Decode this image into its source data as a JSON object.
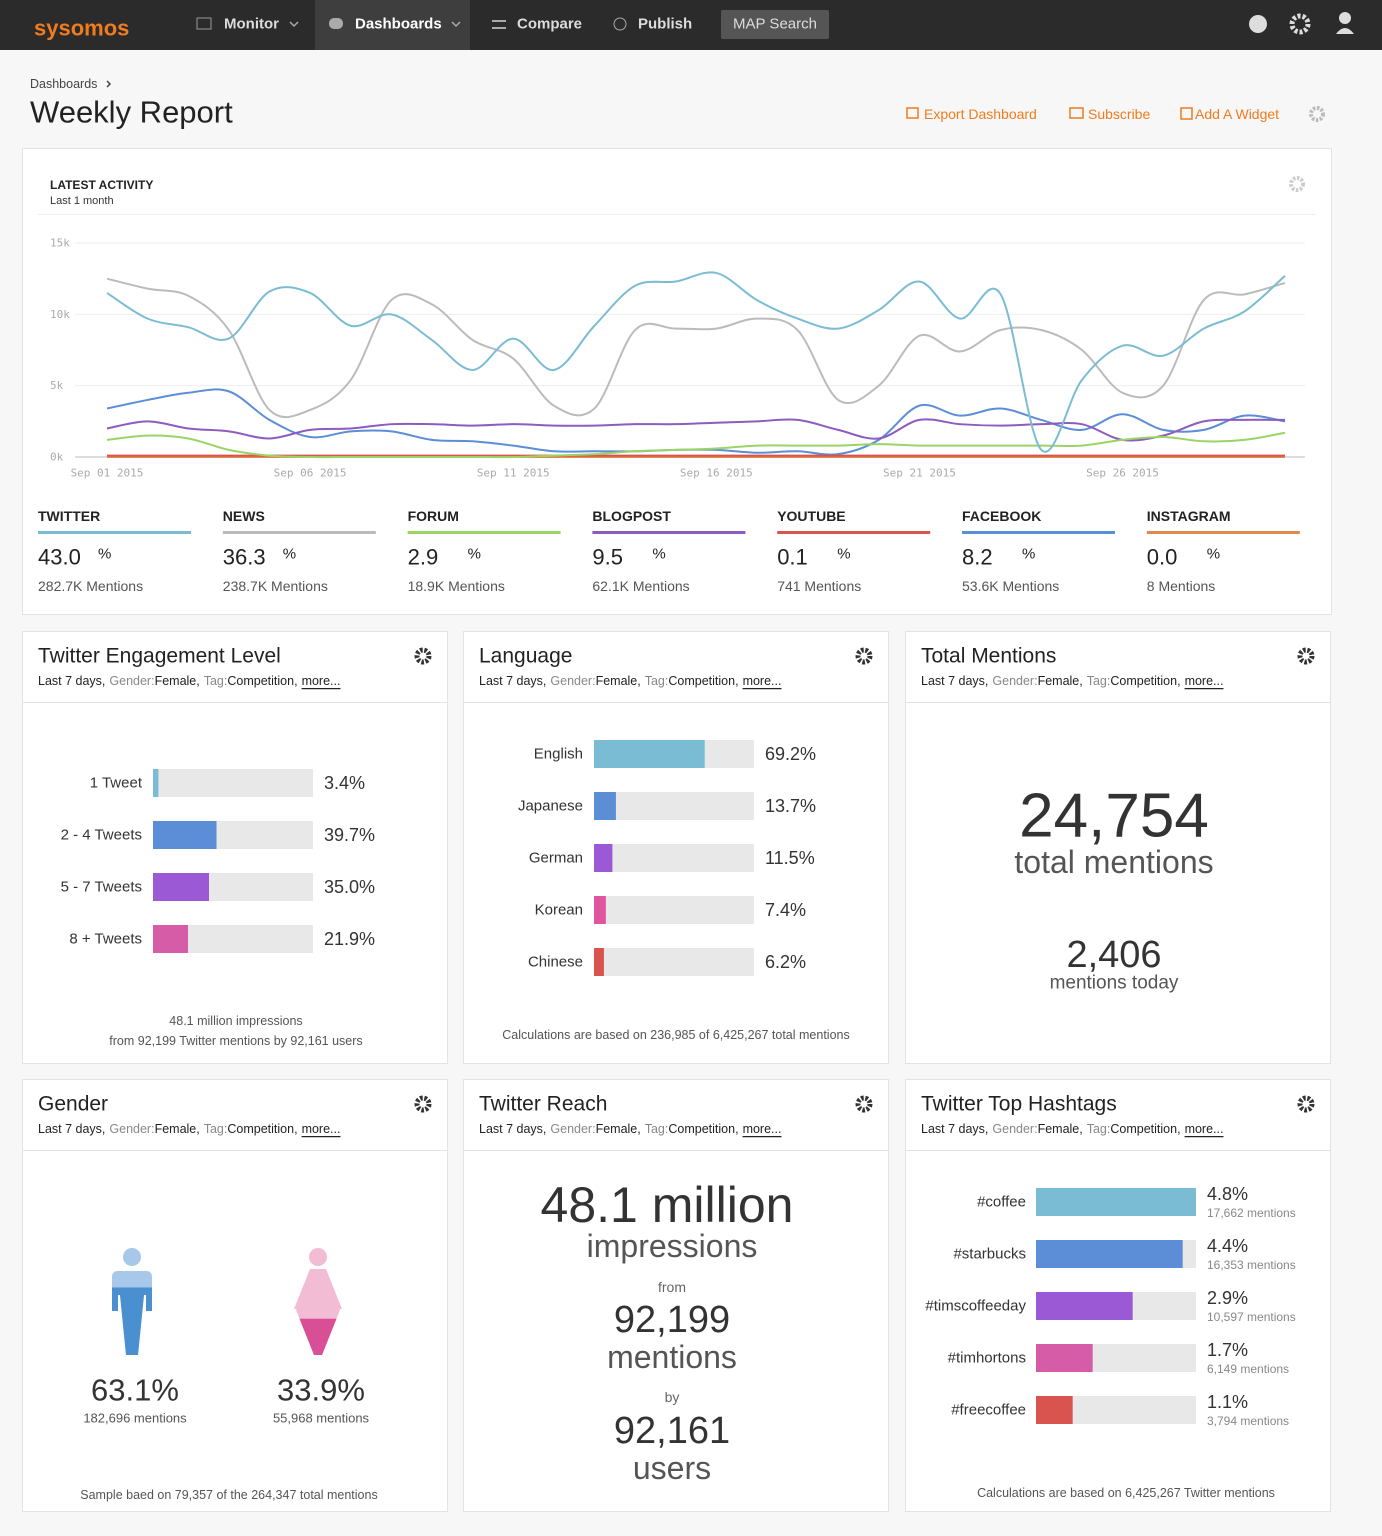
{
  "nav": {
    "logo": "sysomos",
    "items": [
      "Monitor",
      "Dashboards",
      "Compare",
      "Publish"
    ],
    "search": "MAP Search"
  },
  "breadcrumb": "Dashboards",
  "title": "Weekly Report",
  "actions": [
    "Export Dashboard",
    "Subscribe",
    "Add A Widget"
  ],
  "latest_activity": {
    "title": "LATEST ACTIVITY",
    "subtitle": "Last 1 month",
    "percent_unit": "%",
    "chart": {
      "type": "line",
      "categories": [
        "Sep 01 2015",
        null,
        null,
        null,
        null,
        "Sep 06 2015",
        null,
        null,
        null,
        null,
        "Sep 11 2015",
        null,
        null,
        null,
        null,
        "Sep 16 2015",
        null,
        null,
        null,
        null,
        "Sep 21 2015",
        null,
        null,
        null,
        null,
        "Sep 26 2015",
        null,
        null,
        null,
        null
      ],
      "ylim": [
        0,
        15000
      ],
      "yticks": [
        {
          "value": 0,
          "label": "0k"
        },
        {
          "value": 5000,
          "label": "5k"
        },
        {
          "value": 10000,
          "label": "10k"
        },
        {
          "value": 15000,
          "label": "15k"
        }
      ],
      "grid": true,
      "series": [
        {
          "name": "TWITTER",
          "color": "#7bbcd5",
          "percent": "43.0",
          "mentions": "282.7K Mentions",
          "values": [
            11500,
            9700,
            9100,
            8300,
            11600,
            11500,
            9200,
            10000,
            8200,
            6100,
            8300,
            6100,
            9200,
            12000,
            12300,
            12900,
            11000,
            9700,
            9000,
            10300,
            12300,
            9700,
            11400,
            500,
            5400,
            7800,
            7100,
            9000,
            10200,
            12700
          ]
        },
        {
          "name": "NEWS",
          "color": "#bbbbbb",
          "percent": "36.3",
          "mentions": "238.7K Mentions",
          "values": [
            12500,
            11800,
            11300,
            8900,
            3300,
            3300,
            5400,
            11000,
            10700,
            8200,
            6900,
            3600,
            3400,
            8900,
            9000,
            9000,
            9700,
            8900,
            4000,
            5000,
            8500,
            7400,
            8900,
            8900,
            7500,
            4500,
            5000,
            11000,
            11400,
            12200
          ]
        },
        {
          "name": "FORUM",
          "color": "#9bd466",
          "percent": "2.9",
          "mentions": "18.9K Mentions",
          "values": [
            1200,
            1500,
            1300,
            500,
            100,
            0,
            0,
            0,
            0,
            0,
            0,
            100,
            200,
            400,
            500,
            600,
            800,
            800,
            800,
            900,
            800,
            800,
            800,
            800,
            800,
            1200,
            1400,
            1100,
            1200,
            1700
          ]
        },
        {
          "name": "BLOGPOST",
          "color": "#8e5bbf",
          "percent": "9.5",
          "mentions": "62.1K Mentions",
          "values": [
            2000,
            2500,
            2000,
            1800,
            1300,
            1900,
            2000,
            2300,
            2300,
            2200,
            2300,
            2200,
            2200,
            2300,
            2300,
            2400,
            2500,
            2600,
            1900,
            1300,
            2600,
            2300,
            2200,
            2300,
            2300,
            1200,
            1500,
            2500,
            2600,
            2600
          ]
        },
        {
          "name": "YOUTUBE",
          "color": "#d9534f",
          "percent": "0.1",
          "mentions": "741 Mentions",
          "values": [
            100,
            100,
            100,
            100,
            100,
            100,
            100,
            100,
            100,
            100,
            100,
            100,
            100,
            100,
            100,
            100,
            100,
            100,
            100,
            100,
            100,
            100,
            100,
            100,
            100,
            100,
            100,
            100,
            100,
            100
          ]
        },
        {
          "name": "FACEBOOK",
          "color": "#5b8ed6",
          "percent": "8.2",
          "mentions": "53.6K Mentions",
          "values": [
            3400,
            4000,
            4500,
            4600,
            2600,
            1400,
            1800,
            1800,
            1200,
            1100,
            800,
            400,
            400,
            400,
            500,
            500,
            300,
            400,
            200,
            1200,
            3600,
            2900,
            3400,
            2600,
            1900,
            3000,
            1900,
            1900,
            2900,
            2500
          ]
        },
        {
          "name": "INSTAGRAM",
          "color": "#e0894d",
          "percent": "0.0",
          "mentions": "8 Mentions",
          "values": [
            0,
            0,
            0,
            0,
            0,
            0,
            0,
            0,
            0,
            0,
            0,
            0,
            0,
            0,
            0,
            0,
            0,
            0,
            0,
            0,
            0,
            0,
            0,
            0,
            0,
            0,
            0,
            0,
            0,
            0
          ]
        }
      ]
    }
  },
  "widget_filters": {
    "period": "Last 7 days,",
    "filters": [
      {
        "key": "Gender:",
        "value": "Female,"
      },
      {
        "key": "Tag:",
        "value": "Competition,"
      }
    ],
    "more": "more..."
  },
  "engagement": {
    "title": "Twitter Engagement Level",
    "type": "bar",
    "categories": [
      "1 Tweet",
      "2 - 4 Tweets",
      "5 - 7 Tweets",
      "8 + Tweets"
    ],
    "values": [
      3.4,
      39.7,
      35.0,
      21.9
    ],
    "value_labels": [
      "3.4%",
      "39.7%",
      "35.0%",
      "21.9%"
    ],
    "colors": [
      "#7bbcd5",
      "#5b8ed6",
      "#9b59d6",
      "#d65ca8"
    ],
    "xlim": [
      0,
      100
    ],
    "footer": [
      "48.1 million impressions",
      "from 92,199 Twitter mentions by 92,161 users"
    ]
  },
  "language": {
    "title": "Language",
    "type": "bar",
    "categories": [
      "English",
      "Japanese",
      "German",
      "Korean",
      "Chinese"
    ],
    "values": [
      69.2,
      13.7,
      11.5,
      7.4,
      6.2
    ],
    "value_labels": [
      "69.2%",
      "13.7%",
      "11.5%",
      "7.4%",
      "6.2%"
    ],
    "colors": [
      "#7bbcd5",
      "#5b8ed6",
      "#9b59d6",
      "#e0559e",
      "#d9534f"
    ],
    "xlim": [
      0,
      100
    ],
    "footer": "Calculations are based on 236,985 of 6,425,267 total mentions"
  },
  "total_mentions": {
    "title": "Total Mentions",
    "total": "24,754",
    "total_label": "total mentions",
    "today": "2,406",
    "today_label": "mentions today"
  },
  "gender": {
    "title": "Gender",
    "values": [
      63.1,
      33.9
    ],
    "value_labels": [
      "63.1%",
      "33.9%"
    ],
    "mentions": [
      "182,696 mentions",
      "55,968 mentions"
    ],
    "colors": [
      [
        "#a8c8ea",
        "#4a8fd0"
      ],
      [
        "#f2bcd4",
        "#d94f96"
      ]
    ],
    "footer": "Sample baed on 79,357 of the 264,347 total mentions"
  },
  "reach": {
    "title": "Twitter Reach",
    "impressions": "48.1 million",
    "impressions_label": "impressions",
    "from": "from",
    "mentions": "92,199",
    "mentions_label": "mentions",
    "by": "by",
    "users": "92,161",
    "users_label": "users"
  },
  "hashtags": {
    "title": "Twitter Top Hashtags",
    "type": "bar",
    "categories": [
      "#coffee",
      "#starbucks",
      "#timscoffeeday",
      "#timhortons",
      "#freecoffee"
    ],
    "values": [
      4.8,
      4.4,
      2.9,
      1.7,
      1.1
    ],
    "value_labels": [
      "4.8%",
      "4.4%",
      "2.9%",
      "1.7%",
      "1.1%"
    ],
    "mentions": [
      "17,662 mentions",
      "16,353 mentions",
      "10,597 mentions",
      "6,149 mentions",
      "3,794 mentions"
    ],
    "colors": [
      "#7bbcd5",
      "#5b8ed6",
      "#9b59d6",
      "#d65ca8",
      "#d9534f"
    ],
    "xlim": [
      0,
      4.8
    ],
    "footer": "Calculations are based on 6,425,267 Twitter mentions"
  }
}
